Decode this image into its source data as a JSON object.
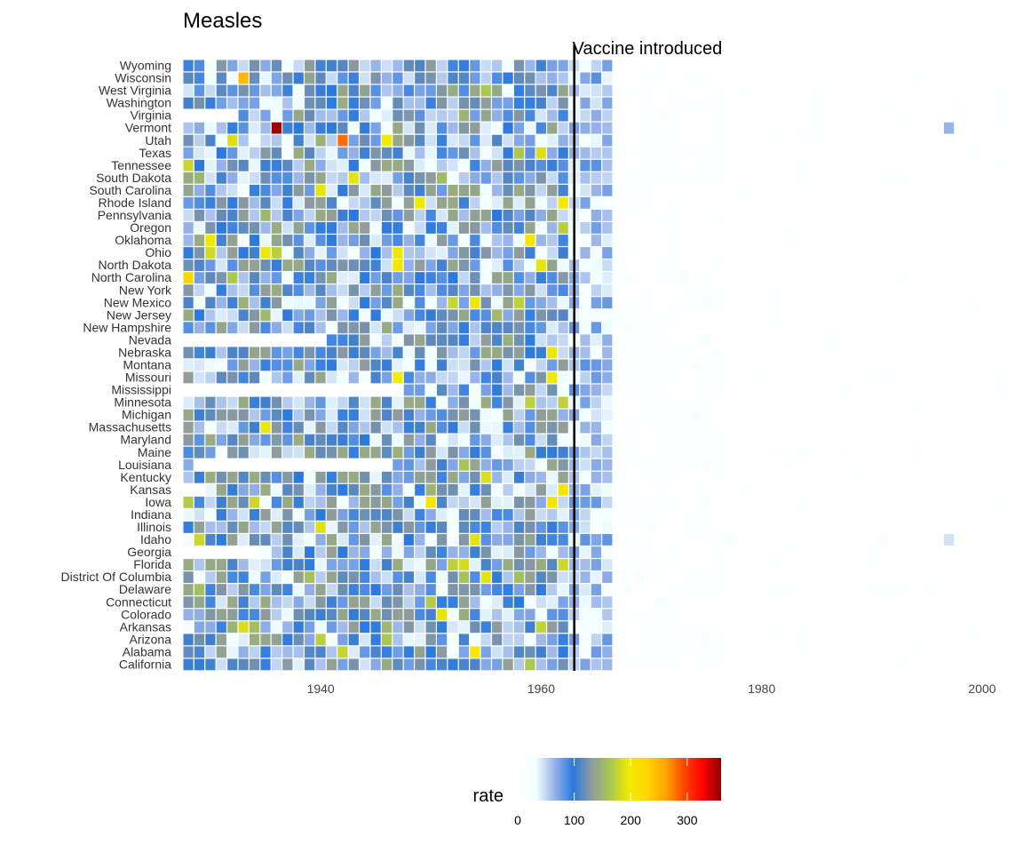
{
  "chart_data": {
    "type": "heatmap",
    "title": "Measles",
    "xlabel": "",
    "ylabel": "",
    "x_ticks": [
      1940,
      1960,
      1980,
      2000
    ],
    "x_range": [
      1928,
      2002
    ],
    "annotation": {
      "text": "Vaccine introduced",
      "x": 1963
    },
    "legend": {
      "title": "rate",
      "placement": "bottom",
      "ticks": [
        0,
        100,
        200,
        300
      ],
      "range": [
        0,
        360
      ],
      "colors": [
        "#FFFFFF",
        "#F0FFFF",
        "#97B2E8",
        "#2B79DE",
        "#8E9B9F",
        "#A9C751",
        "#F0EB00",
        "#FFD700",
        "#FFA500",
        "#FF4500",
        "#FF0000",
        "#8B0000"
      ]
    },
    "states": [
      "California",
      "Alabama",
      "Arizona",
      "Arkansas",
      "Colorado",
      "Connecticut",
      "Delaware",
      "District Of Columbia",
      "Florida",
      "Georgia",
      "Idaho",
      "Illinois",
      "Indiana",
      "Iowa",
      "Kansas",
      "Kentucky",
      "Louisiana",
      "Maine",
      "Maryland",
      "Massachusetts",
      "Michigan",
      "Minnesota",
      "Mississippi",
      "Missouri",
      "Montana",
      "Nebraska",
      "Nevada",
      "New Hampshire",
      "New Jersey",
      "New Mexico",
      "New York",
      "North Carolina",
      "North Dakota",
      "Ohio",
      "Oklahoma",
      "Oregon",
      "Pennsylvania",
      "Rhode Island",
      "South Carolina",
      "South Dakota",
      "Tennessee",
      "Texas",
      "Utah",
      "Vermont",
      "Virginia",
      "Washington",
      "West Virginia",
      "Wisconsin",
      "Wyoming"
    ],
    "years": [
      1928,
      2002
    ],
    "peak_cells": [
      {
        "state": "Vermont",
        "year": 1936,
        "rate": 355
      },
      {
        "state": "Utah",
        "year": 1942,
        "rate": 280
      },
      {
        "state": "Wisconsin",
        "year": 1933,
        "rate": 250
      },
      {
        "state": "North Carolina",
        "year": 1928,
        "rate": 230
      }
    ]
  }
}
